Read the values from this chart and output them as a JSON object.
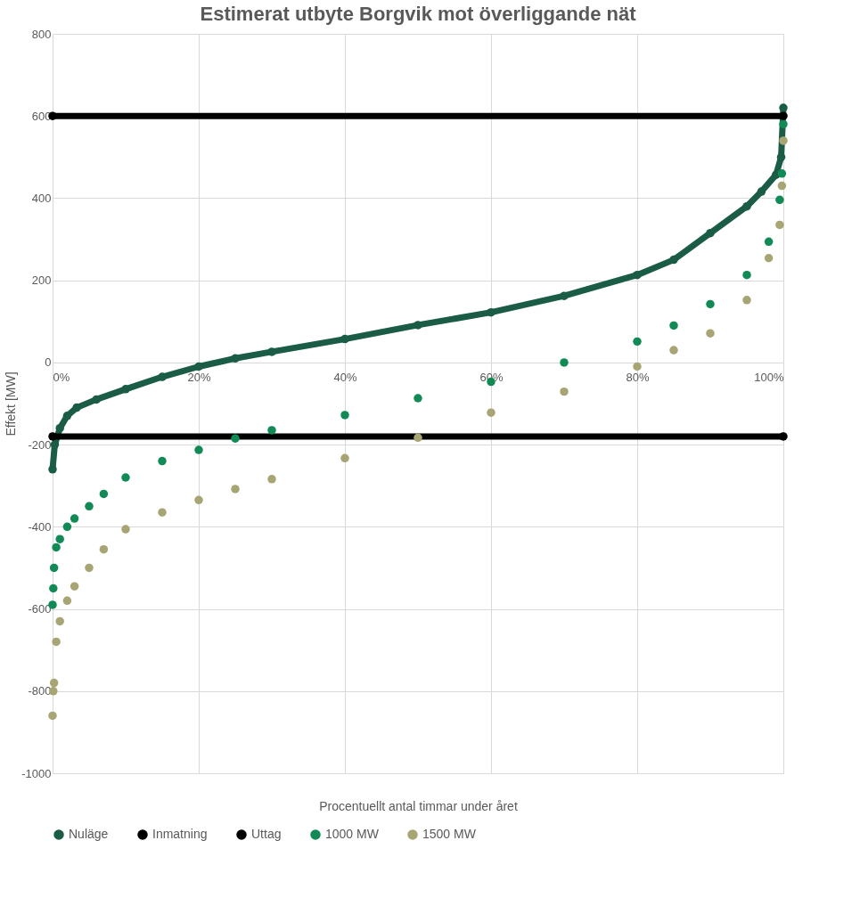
{
  "chart_data": {
    "type": "line",
    "title": "Estimerat utbyte Borgvik mot överliggande nät",
    "xlabel": "Procentuellt antal timmar under året",
    "ylabel": "Effekt [MW]",
    "xlim": [
      0,
      100
    ],
    "ylim": [
      -1000,
      800
    ],
    "xticks": [
      {
        "value": 0,
        "label": "0%"
      },
      {
        "value": 20,
        "label": "20%"
      },
      {
        "value": 40,
        "label": "40%"
      },
      {
        "value": 60,
        "label": "60%"
      },
      {
        "value": 80,
        "label": "80%"
      },
      {
        "value": 100,
        "label": "100%"
      }
    ],
    "yticks": [
      -1000,
      -800,
      -600,
      -400,
      -200,
      0,
      200,
      400,
      600,
      800
    ],
    "grid": true,
    "legend": "bottom",
    "marker": "circle",
    "series": [
      {
        "name": "Nuläge",
        "color": "#1a5c45",
        "x": [
          0,
          0.3,
          1,
          2,
          3.3,
          6,
          10,
          15,
          20,
          25,
          30,
          40,
          50,
          60,
          70,
          80,
          85,
          90,
          95,
          97,
          99,
          99.7,
          100
        ],
        "values": [
          -260,
          -200,
          -160,
          -130,
          -110,
          -90,
          -65,
          -35,
          -10,
          10,
          26,
          57,
          91,
          122,
          162,
          213,
          250,
          315,
          380,
          416,
          457,
          500,
          620
        ]
      },
      {
        "name": "Inmatning",
        "color": "#000000",
        "x": [
          0,
          100
        ],
        "values": [
          600,
          600
        ]
      },
      {
        "name": "Uttag",
        "color": "#000000",
        "x": [
          0,
          100
        ],
        "values": [
          -180,
          -180
        ]
      },
      {
        "name": "1000 MW",
        "type": "scatter",
        "color": "#118a55",
        "x": [
          0,
          0.1,
          0.2,
          0.5,
          1,
          2,
          3,
          5,
          7,
          10,
          15,
          20,
          25,
          30,
          40,
          50,
          60,
          70,
          80,
          85,
          90,
          95,
          98,
          99.5,
          99.8,
          100
        ],
        "values": [
          -590,
          -550,
          -500,
          -450,
          -430,
          -400,
          -380,
          -350,
          -320,
          -280,
          -240,
          -213,
          -185,
          -165,
          -128,
          -87,
          -47,
          0,
          51,
          90,
          142,
          213,
          294,
          396,
          460,
          580
        ]
      },
      {
        "name": "1500 MW",
        "type": "scatter",
        "color": "#a8a574",
        "x": [
          0,
          0.1,
          0.2,
          0.5,
          1,
          2,
          3,
          5,
          7,
          10,
          15,
          20,
          25,
          30,
          40,
          50,
          60,
          70,
          80,
          85,
          90,
          95,
          98,
          99.5,
          99.8,
          100
        ],
        "values": [
          -860,
          -800,
          -780,
          -680,
          -630,
          -580,
          -545,
          -500,
          -455,
          -406,
          -365,
          -335,
          -308,
          -284,
          -233,
          -183,
          -122,
          -71,
          -10,
          30,
          71,
          152,
          254,
          335,
          430,
          540
        ]
      }
    ]
  }
}
